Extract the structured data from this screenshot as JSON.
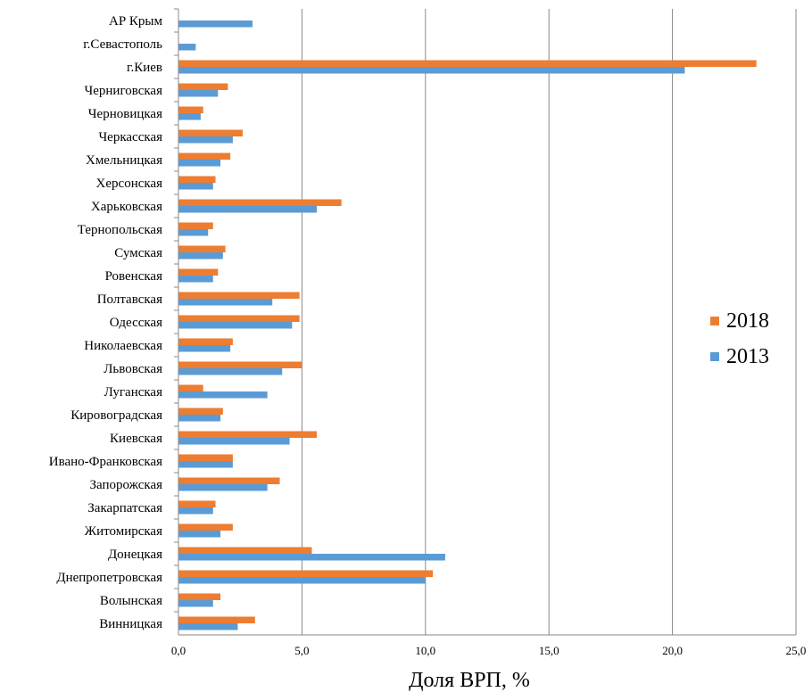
{
  "chart_data": {
    "type": "bar",
    "orientation": "horizontal",
    "xlabel": "Доля ВРП, %",
    "xlim": [
      0,
      25
    ],
    "xticks": [
      "0,0",
      "5,0",
      "10,0",
      "15,0",
      "20,0",
      "25,0"
    ],
    "grid": "vertical",
    "legend_position": "right",
    "categories": [
      "АР Крым",
      "г.Севастополь",
      "г.Киев",
      "Черниговская",
      "Черновицкая",
      "Черкасская",
      "Хмельницкая",
      "Херсонская",
      "Харьковская",
      "Тернопольская",
      "Сумская",
      "Ровенская",
      "Полтавская",
      "Одесская",
      "Николаевская",
      "Львовская",
      "Луганская",
      "Кировоградская",
      "Киевская",
      "Ивано-Франковская",
      "Запорожская",
      "Закарпатская",
      "Житомирская",
      "Донецкая",
      "Днепропетровская",
      "Волынская",
      "Винницкая"
    ],
    "series": [
      {
        "name": "2018",
        "color": "#ed7d31",
        "values": [
          null,
          null,
          23.4,
          2.0,
          1.0,
          2.6,
          2.1,
          1.5,
          6.6,
          1.4,
          1.9,
          1.6,
          4.9,
          4.9,
          2.2,
          5.0,
          1.0,
          1.8,
          5.6,
          2.2,
          4.1,
          1.5,
          2.2,
          5.4,
          10.3,
          1.7,
          3.1
        ]
      },
      {
        "name": "2013",
        "color": "#5b9bd5",
        "values": [
          3.0,
          0.7,
          20.5,
          1.6,
          0.9,
          2.2,
          1.7,
          1.4,
          5.6,
          1.2,
          1.8,
          1.4,
          3.8,
          4.6,
          2.1,
          4.2,
          3.6,
          1.7,
          4.5,
          2.2,
          3.6,
          1.4,
          1.7,
          10.8,
          10.0,
          1.4,
          2.4
        ]
      }
    ]
  }
}
